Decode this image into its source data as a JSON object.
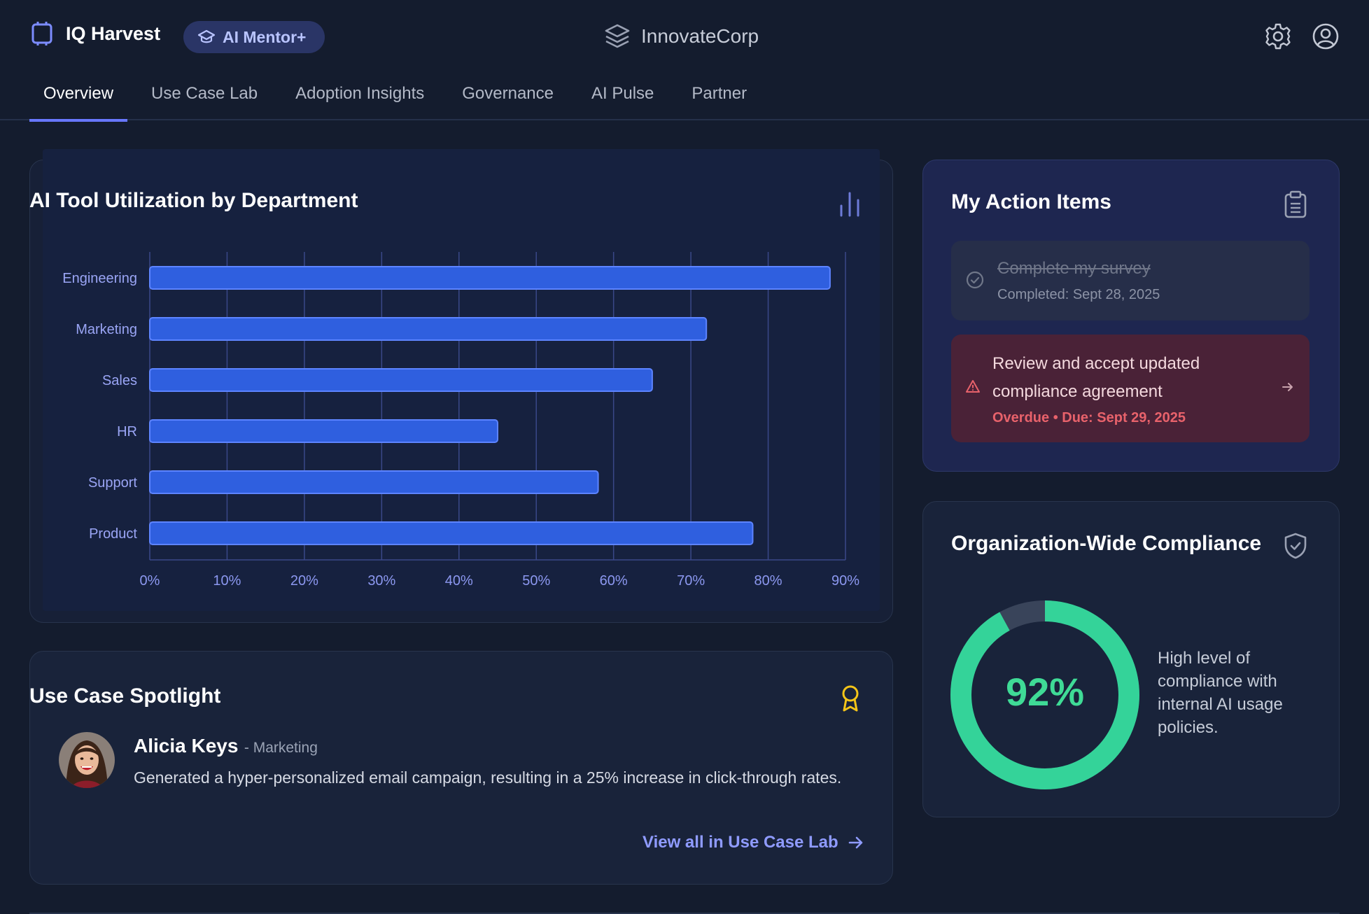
{
  "header": {
    "app_title": "IQ Harvest",
    "mentor_label": "AI Mentor+",
    "org_name": "InnovateCorp",
    "icons": [
      "app-logo-icon",
      "graduation-cap-icon",
      "layers-icon",
      "gear-icon",
      "user-icon"
    ]
  },
  "tabs": [
    {
      "label": "Overview",
      "active": true
    },
    {
      "label": "Use Case Lab"
    },
    {
      "label": "Adoption Insights"
    },
    {
      "label": "Governance"
    },
    {
      "label": "AI Pulse"
    },
    {
      "label": "Partner"
    }
  ],
  "utilization": {
    "title": "AI Tool Utilization by Department",
    "bar_color": "#2f5fdf"
  },
  "chart_data": {
    "type": "bar",
    "orientation": "horizontal",
    "title": "AI Tool Utilization by Department",
    "categories": [
      "Engineering",
      "Marketing",
      "Sales",
      "HR",
      "Support",
      "Product"
    ],
    "values": [
      88,
      72,
      65,
      45,
      58,
      78
    ],
    "xlim": [
      0,
      90
    ],
    "ticks": [
      0,
      10,
      20,
      30,
      40,
      50,
      60,
      70,
      80,
      90
    ],
    "tick_format": "%",
    "grid": true
  },
  "spotlight": {
    "title": "Use Case Spotlight",
    "name": "Alicia Keys",
    "department": "- Marketing",
    "description": "Generated a hyper-personalized email campaign, resulting in a 25% increase in click-through rates.",
    "link": "View all in Use Case Lab"
  },
  "actions": {
    "title": "My Action Items",
    "completed": {
      "title": "Complete my survey",
      "meta": "Completed: Sept 28, 2025"
    },
    "overdue": {
      "title": "Review and accept updated compliance agreement",
      "meta": "Overdue • Due: Sept 29, 2025"
    }
  },
  "compliance": {
    "title": "Organization-Wide Compliance",
    "value_label": "92%",
    "fraction": 0.92,
    "color": "#34d399",
    "description": "High level of compliance with internal AI usage policies."
  }
}
